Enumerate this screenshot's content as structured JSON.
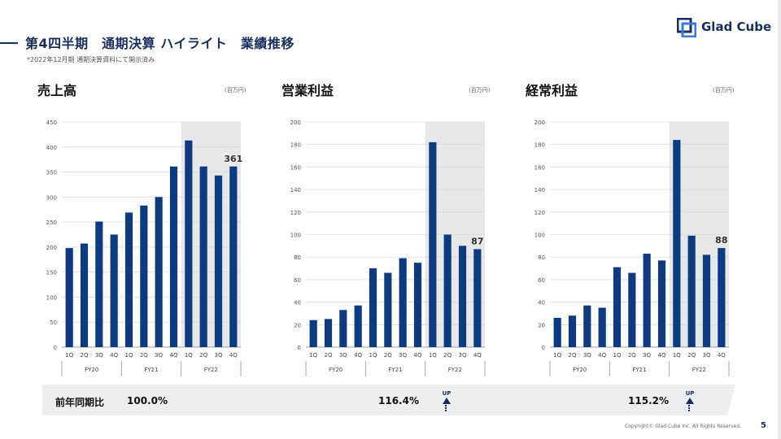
{
  "header": {
    "title": "第4四半期　通期決算 ハイライト　業績推移",
    "note": "*2022年12月期 通期決算資料にて開示済み",
    "logo_text": "Glad Cube"
  },
  "chart_data": [
    {
      "type": "bar",
      "title": "売上高",
      "unit": "(百万円)",
      "categories": [
        "1Q",
        "2Q",
        "3Q",
        "4Q",
        "1Q",
        "2Q",
        "3Q",
        "4Q",
        "1Q",
        "2Q",
        "3Q",
        "4Q"
      ],
      "groups": [
        "FY20",
        "FY21",
        "FY22"
      ],
      "values": [
        198,
        207,
        251,
        225,
        269,
        283,
        300,
        361,
        413,
        361,
        343,
        361
      ],
      "ylim": [
        0,
        450
      ],
      "yticks": [
        "0",
        "50",
        "100",
        "150",
        "200",
        "250",
        "300",
        "350",
        "400",
        "450"
      ],
      "highlight_label": "361",
      "shaded_group": "FY22",
      "bar_color": "#0e3a80"
    },
    {
      "type": "bar",
      "title": "営業利益",
      "unit": "(百万円)",
      "categories": [
        "1Q",
        "2Q",
        "3Q",
        "4Q",
        "1Q",
        "2Q",
        "3Q",
        "4Q",
        "1Q",
        "2Q",
        "3Q",
        "4Q"
      ],
      "groups": [
        "FY20",
        "FY21",
        "FY22"
      ],
      "values": [
        24,
        25,
        33,
        37,
        70,
        66,
        79,
        75,
        182,
        100,
        90,
        87
      ],
      "ylim": [
        0,
        200
      ],
      "yticks": [
        "0",
        "20",
        "40",
        "60",
        "80",
        "100",
        "120",
        "140",
        "160",
        "180",
        "200"
      ],
      "highlight_label": "87",
      "shaded_group": "FY22",
      "bar_color": "#0e3a80"
    },
    {
      "type": "bar",
      "title": "経常利益",
      "unit": "(百万円)",
      "categories": [
        "1Q",
        "2Q",
        "3Q",
        "4Q",
        "1Q",
        "2Q",
        "3Q",
        "4Q",
        "1Q",
        "2Q",
        "3Q",
        "4Q"
      ],
      "groups": [
        "FY20",
        "FY21",
        "FY22"
      ],
      "values": [
        26,
        28,
        37,
        35,
        71,
        66,
        83,
        77,
        184,
        99,
        82,
        88
      ],
      "ylim": [
        0,
        200
      ],
      "yticks": [
        "0",
        "20",
        "40",
        "60",
        "80",
        "100",
        "120",
        "140",
        "160",
        "180",
        "200"
      ],
      "highlight_label": "88",
      "shaded_group": "FY22",
      "bar_color": "#0e3a80"
    }
  ],
  "yoy": {
    "label": "前年同期比",
    "values": [
      "100.0%",
      "116.4%",
      "115.2%"
    ],
    "up_text": "UP"
  },
  "footer": {
    "copyright": "Copyright© Glad Cube Inc. All Rights Reserved.",
    "page": "5"
  }
}
